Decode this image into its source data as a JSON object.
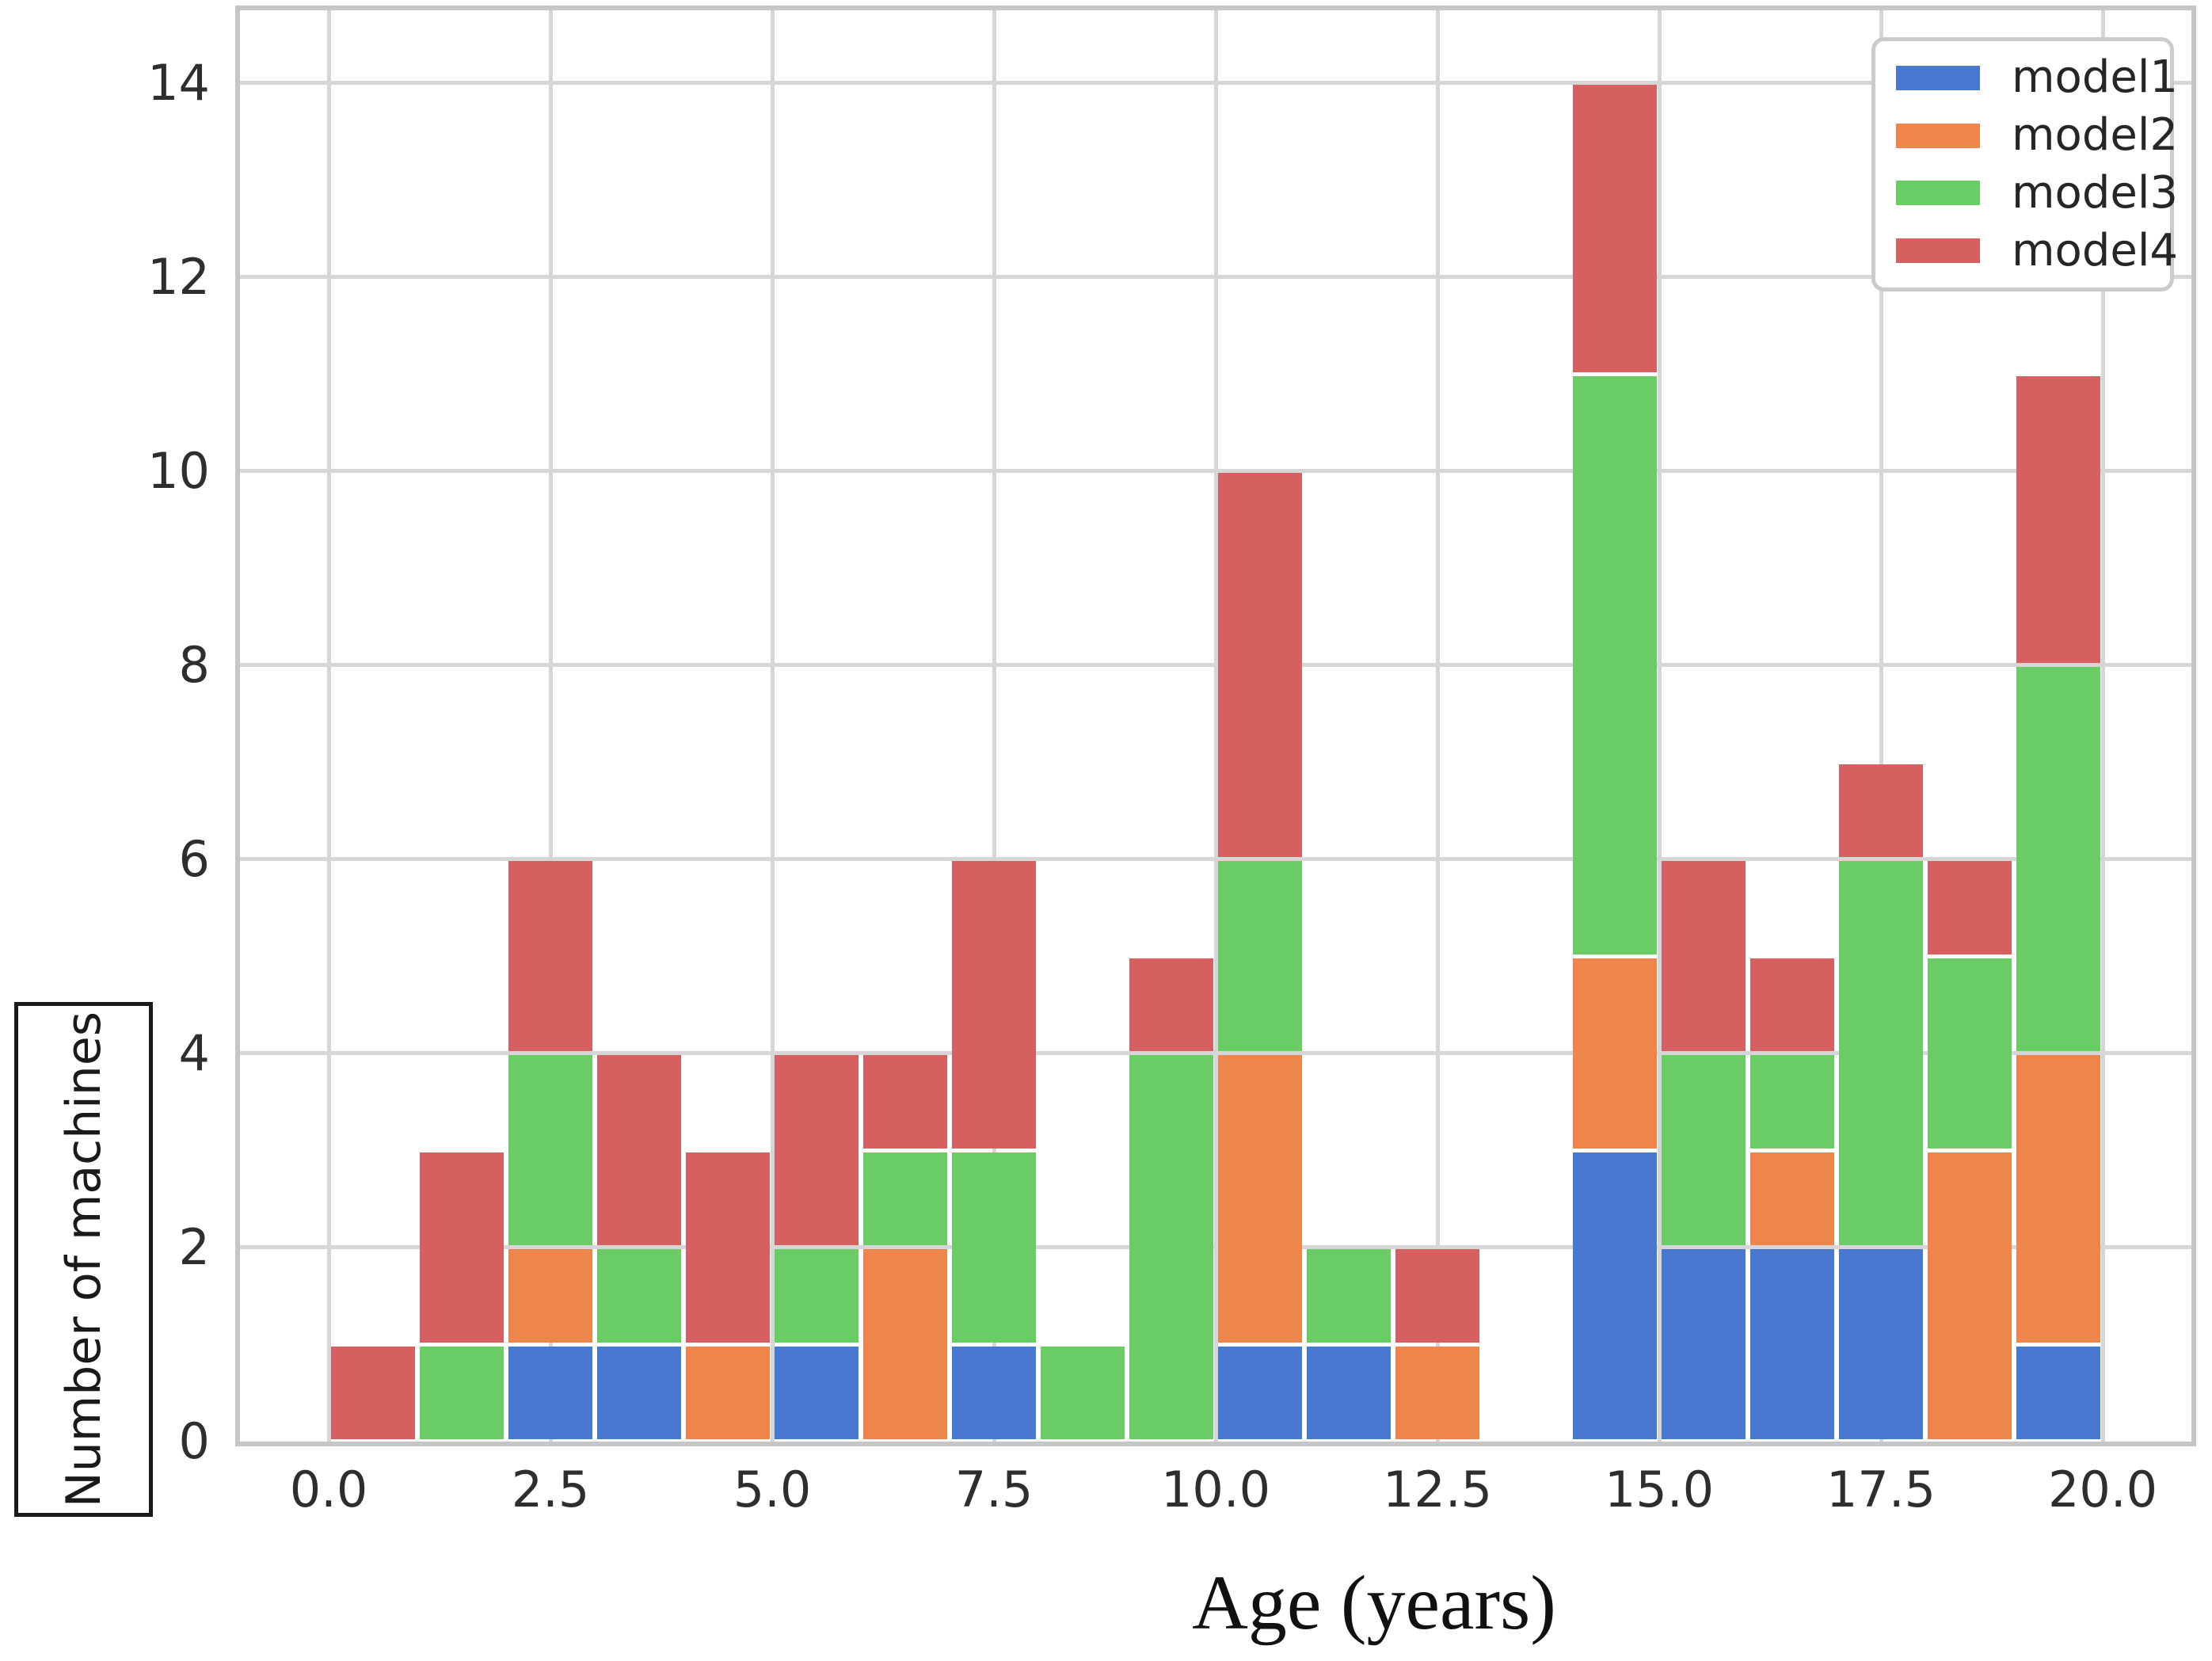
{
  "colors": {
    "model1_blue": "#4878D0",
    "model2_orange": "#EE854A",
    "model3_green": "#6ACC64",
    "model4_red": "#D65F5F",
    "grid": "#D6D6D6",
    "spine": "#C6C6C6",
    "tick_text": "#2E2E2E",
    "label_text": "#1A1A1A",
    "background": "#FFFFFF"
  },
  "axes": {
    "ylabel": "Number of machines",
    "xlabel": "Age (years)"
  },
  "legend": {
    "items": [
      {
        "label": "model1",
        "color": "#4878D0"
      },
      {
        "label": "model2",
        "color": "#EE854A"
      },
      {
        "label": "model3",
        "color": "#6ACC64"
      },
      {
        "label": "model4",
        "color": "#D65F5F"
      }
    ]
  },
  "chart_data": {
    "type": "bar",
    "stacked": true,
    "title": "",
    "xlabel": "Age (years)",
    "ylabel": "Number of machines",
    "bin_width": 1,
    "bin_starts": [
      0,
      1,
      2,
      3,
      4,
      5,
      6,
      7,
      8,
      9,
      10,
      11,
      12,
      13,
      14,
      15,
      16,
      17,
      18,
      19
    ],
    "series": [
      {
        "name": "model1",
        "color": "#4878D0",
        "values": [
          0,
          0,
          1,
          1,
          0,
          1,
          0,
          1,
          0,
          0,
          1,
          1,
          0,
          0,
          3,
          2,
          2,
          2,
          0,
          1
        ]
      },
      {
        "name": "model2",
        "color": "#EE854A",
        "values": [
          0,
          0,
          1,
          0,
          1,
          0,
          2,
          0,
          0,
          0,
          3,
          0,
          1,
          0,
          2,
          0,
          1,
          0,
          3,
          3
        ]
      },
      {
        "name": "model3",
        "color": "#6ACC64",
        "values": [
          0,
          1,
          2,
          1,
          0,
          1,
          1,
          2,
          1,
          4,
          2,
          1,
          0,
          0,
          6,
          2,
          1,
          4,
          2,
          4
        ]
      },
      {
        "name": "model4",
        "color": "#D65F5F",
        "values": [
          1,
          2,
          2,
          2,
          2,
          2,
          1,
          3,
          0,
          1,
          4,
          0,
          1,
          0,
          3,
          2,
          1,
          1,
          1,
          3
        ]
      }
    ],
    "totals": [
      1,
      3,
      6,
      4,
      3,
      4,
      4,
      6,
      1,
      5,
      10,
      2,
      2,
      0,
      14,
      6,
      5,
      7,
      6,
      11
    ],
    "xlim": [
      -1,
      21
    ],
    "ylim": [
      0,
      14.75
    ],
    "x_tick_values": [
      0,
      2.5,
      5,
      7.5,
      10,
      12.5,
      15,
      17.5,
      20
    ],
    "x_tick_labels": [
      "0.0",
      "2.5",
      "5.0",
      "7.5",
      "10.0",
      "12.5",
      "15.0",
      "17.5",
      "20.0"
    ],
    "y_tick_values": [
      0,
      2,
      4,
      6,
      8,
      10,
      12,
      14
    ],
    "y_tick_labels": [
      "0",
      "2",
      "4",
      "6",
      "8",
      "10",
      "12",
      "14"
    ],
    "grid": true,
    "legend_position": "upper right"
  }
}
